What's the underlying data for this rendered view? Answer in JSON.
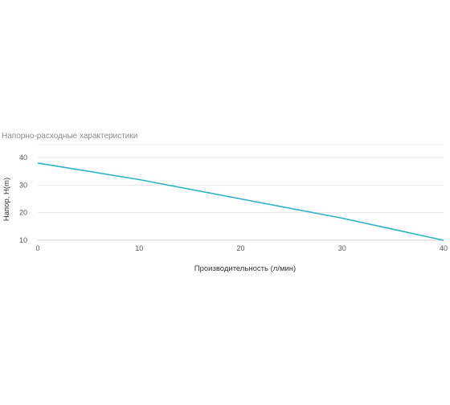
{
  "chart_data": {
    "type": "line",
    "title": "Напорно-расходные характеристики",
    "xlabel": "Производительность (л/мин)",
    "ylabel": "Напор, Н(m)",
    "x_ticks": [
      "0",
      "10",
      "20",
      "30",
      "40"
    ],
    "y_ticks": [
      "10",
      "20",
      "30",
      "40"
    ],
    "xlim": [
      0,
      40
    ],
    "ylim": [
      10,
      40
    ],
    "grid": "horizontal",
    "series": [
      {
        "x": [
          0,
          10,
          20,
          30,
          40
        ],
        "y": [
          38,
          32,
          25,
          18,
          10
        ],
        "color": "#2bb3c6"
      }
    ]
  }
}
